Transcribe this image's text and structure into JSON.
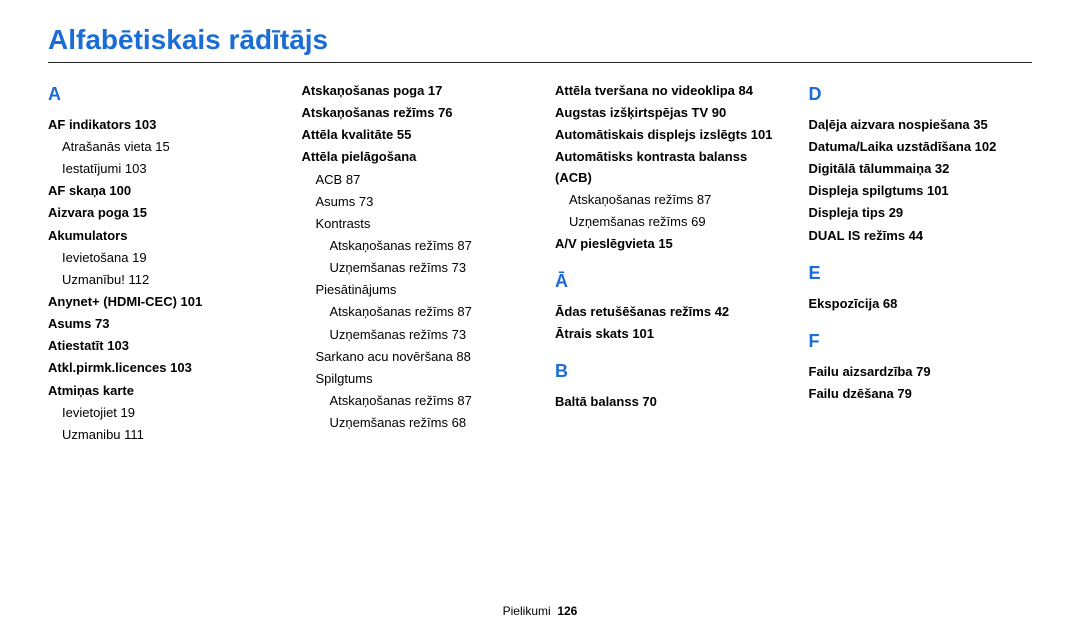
{
  "title": "Alfabētiskais rādītājs",
  "footer": {
    "label": "Pielikumi",
    "page": "126"
  },
  "col1": {
    "letter": "A",
    "items": [
      {
        "t": "bold",
        "text": "AF indikators  103"
      },
      {
        "t": "sub",
        "text": "Atrašanās vieta  15"
      },
      {
        "t": "sub",
        "text": "Iestatījumi  103"
      },
      {
        "t": "bold",
        "text": "AF skaņa  100"
      },
      {
        "t": "bold",
        "text": "Aizvara poga  15"
      },
      {
        "t": "bold",
        "text": "Akumulators"
      },
      {
        "t": "sub",
        "text": "Ievietošana  19"
      },
      {
        "t": "sub",
        "text": "Uzmanību!  112"
      },
      {
        "t": "bold",
        "text": "Anynet+ (HDMI-CEC)  101"
      },
      {
        "t": "bold",
        "text": "Asums  73"
      },
      {
        "t": "bold",
        "text": "Atiestatīt  103"
      },
      {
        "t": "bold",
        "text": "Atkl.pirmk.licences  103"
      },
      {
        "t": "bold",
        "text": "Atmiņas karte"
      },
      {
        "t": "sub",
        "text": "Ievietojiet  19"
      },
      {
        "t": "sub",
        "text": "Uzmanibu  111"
      }
    ]
  },
  "col2": {
    "items": [
      {
        "t": "bold",
        "text": "Atskaņošanas poga  17"
      },
      {
        "t": "bold",
        "text": "Atskaņošanas režīms  76"
      },
      {
        "t": "bold",
        "text": "Attēla kvalitāte  55"
      },
      {
        "t": "bold",
        "text": "Attēla pielāgošana"
      },
      {
        "t": "sub",
        "text": "ACB  87"
      },
      {
        "t": "sub",
        "text": "Asums  73"
      },
      {
        "t": "sub",
        "text": "Kontrasts"
      },
      {
        "t": "sub2",
        "text": "Atskaņošanas režīms  87"
      },
      {
        "t": "sub2",
        "text": "Uzņemšanas režīms  73"
      },
      {
        "t": "sub",
        "text": "Piesātinājums"
      },
      {
        "t": "sub2",
        "text": "Atskaņošanas režīms  87"
      },
      {
        "t": "sub2",
        "text": "Uzņemšanas režīms  73"
      },
      {
        "t": "sub",
        "text": "Sarkano acu novēršana  88"
      },
      {
        "t": "sub",
        "text": "Spilgtums"
      },
      {
        "t": "sub2",
        "text": "Atskaņošanas režīms  87"
      },
      {
        "t": "sub2",
        "text": "Uzņemšanas režīms  68"
      }
    ]
  },
  "col3": {
    "groups": [
      {
        "items": [
          {
            "t": "bold",
            "text": "Attēla tveršana no videoklipa  84"
          },
          {
            "t": "bold",
            "text": "Augstas izšķirtspējas TV  90"
          },
          {
            "t": "bold",
            "text": "Automātiskais displejs izslēgts  101"
          },
          {
            "t": "bold",
            "text": "Automātisks kontrasta balanss (ACB)"
          },
          {
            "t": "sub",
            "text": "Atskaņošanas režīms  87"
          },
          {
            "t": "sub",
            "text": "Uzņemšanas režīms  69"
          },
          {
            "t": "bold",
            "text": "A/V pieslēgvieta  15"
          }
        ]
      },
      {
        "letter": "Ā",
        "items": [
          {
            "t": "bold",
            "text": "Ādas retušēšanas režīms  42"
          },
          {
            "t": "bold",
            "text": "Ātrais skats  101"
          }
        ]
      },
      {
        "letter": "B",
        "items": [
          {
            "t": "bold",
            "text": "Baltā balanss  70"
          }
        ]
      }
    ]
  },
  "col4": {
    "groups": [
      {
        "letter": "D",
        "items": [
          {
            "t": "bold",
            "text": "Daļēja aizvara nospiešana  35"
          },
          {
            "t": "bold",
            "text": "Datuma/Laika uzstādīšana  102"
          },
          {
            "t": "bold",
            "text": "Digitālā tālummaiņa  32"
          },
          {
            "t": "bold",
            "text": "Displeja spilgtums  101"
          },
          {
            "t": "bold",
            "text": "Displeja tips  29"
          },
          {
            "t": "bold",
            "text": "DUAL IS režīms  44"
          }
        ]
      },
      {
        "letter": "E",
        "items": [
          {
            "t": "bold",
            "text": "Ekspozīcija  68"
          }
        ]
      },
      {
        "letter": "F",
        "items": [
          {
            "t": "bold",
            "text": "Failu aizsardzība  79"
          },
          {
            "t": "bold",
            "text": "Failu dzēšana  79"
          }
        ]
      }
    ]
  }
}
